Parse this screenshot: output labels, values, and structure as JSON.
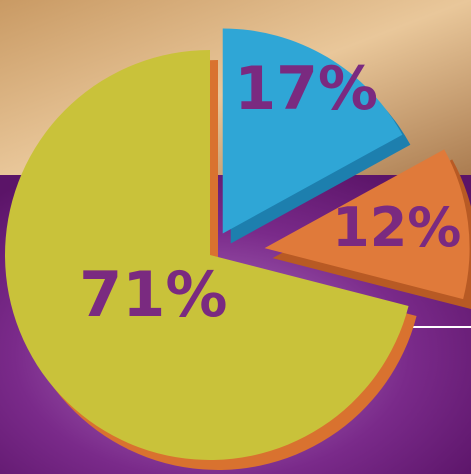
{
  "chart_data": {
    "type": "pie",
    "categories": [
      null,
      null,
      null
    ],
    "values": [
      17,
      12,
      71
    ],
    "value_labels": [
      "17%",
      "12%",
      "71%"
    ],
    "colors": [
      "#2fa6d6",
      "#e07a3a",
      "#c9c23a"
    ]
  }
}
